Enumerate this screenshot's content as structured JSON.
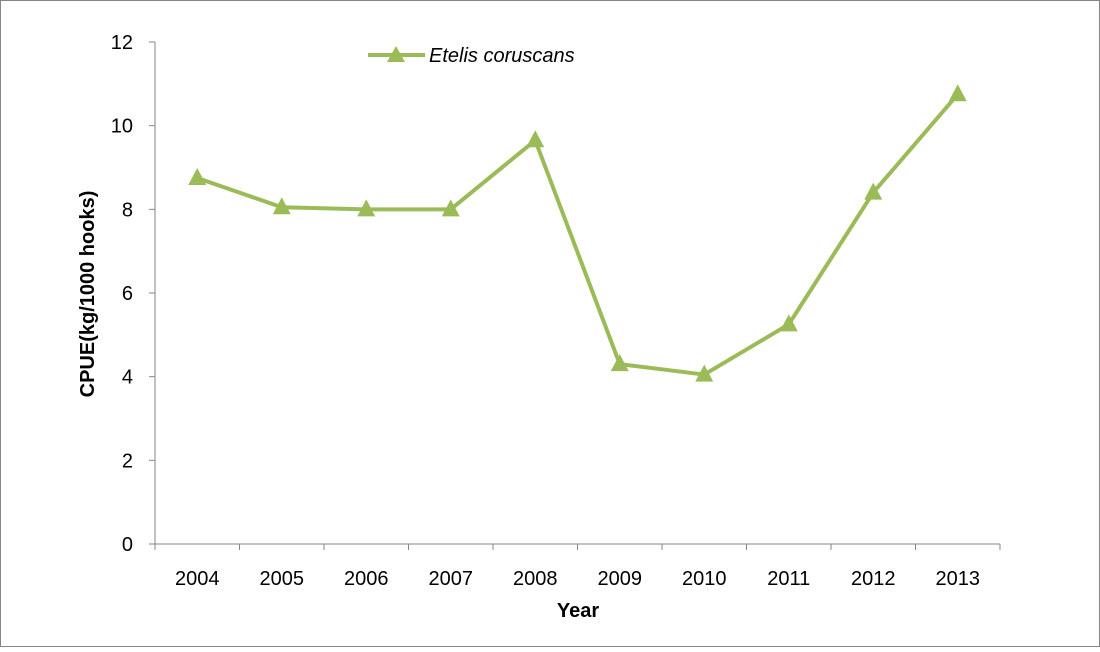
{
  "chart_data": {
    "type": "line",
    "categories": [
      "2004",
      "2005",
      "2006",
      "2007",
      "2008",
      "2009",
      "2010",
      "2011",
      "2012",
      "2013"
    ],
    "series": [
      {
        "name": "Etelis coruscans",
        "values": [
          8.75,
          8.05,
          8.0,
          8.0,
          9.65,
          4.3,
          4.05,
          5.25,
          8.4,
          10.75
        ]
      }
    ],
    "xlabel": "Year",
    "ylabel": "CPUE(kg/1000 hooks)",
    "yticks": [
      "0",
      "2",
      "4",
      "6",
      "8",
      "10",
      "12"
    ],
    "ylim": [
      0,
      12
    ],
    "grid": false,
    "legend_position": "top-center",
    "colors": {
      "series": "#9BBB59",
      "axis": "#868686",
      "border": "#868686"
    }
  }
}
